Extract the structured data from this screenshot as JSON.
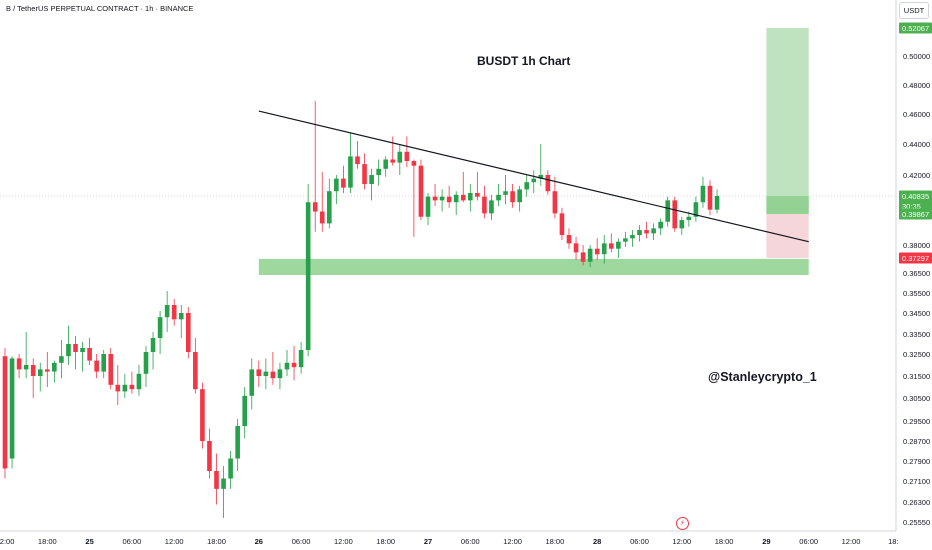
{
  "header": {
    "symbol_line": "B / TetherUS PERPETUAL CONTRACT · 1h · BINANCE",
    "currency": "USDT"
  },
  "annotations": {
    "title": "BUSDT 1h Chart",
    "watermark": "@Stanleycrypto_1",
    "flash_icon": "lightning-icon"
  },
  "price_axis": {
    "ticks": [
      "0.50000",
      "0.48000",
      "0.46000",
      "0.44000",
      "0.42000",
      "0.38000",
      "0.36500",
      "0.35500",
      "0.34500",
      "0.33500",
      "0.32500",
      "0.31500",
      "0.30500",
      "0.29500",
      "0.28700",
      "0.27900",
      "0.27100",
      "0.26300",
      "0.25550"
    ],
    "badges": [
      {
        "label": "0.52067",
        "color": "#4caf50"
      },
      {
        "label": "0.40835",
        "color": "#4caf50"
      },
      {
        "label": "30:35",
        "color": "#4caf50"
      },
      {
        "label": "0.39867",
        "color": "#4caf50"
      },
      {
        "label": "0.37297",
        "color": "#f23645"
      }
    ]
  },
  "time_axis": {
    "ticks": [
      "12:00",
      "18:00",
      "25",
      "06:00",
      "12:00",
      "18:00",
      "26",
      "06:00",
      "12:00",
      "18:00",
      "27",
      "06:00",
      "12:00",
      "18:00",
      "28",
      "06:00",
      "12:00",
      "18:00",
      "29",
      "06:00",
      "12:00",
      "18:"
    ]
  },
  "colors": {
    "up": "#26a04a",
    "down": "#f23645",
    "support_zone": "#9fd89f",
    "profit_zone": "#bfe3bf",
    "loss_zone": "#f5d6da",
    "trendline": "#131722"
  },
  "chart_data": {
    "type": "candlestick",
    "title": "BUSDT 1h Chart",
    "y_scale": "piecewise (per tick labels)",
    "ylim": [
      0.2525,
      0.525
    ],
    "x_range": [
      "2025-01-24 12:00",
      "2025-01-29 18:00"
    ],
    "last_price": 0.40835,
    "candles_hourly_from": "2025-01-24 12:00",
    "candles_ohlc": [
      [
        0.324,
        0.328,
        0.272,
        0.276
      ],
      [
        0.28,
        0.324,
        0.276,
        0.323
      ],
      [
        0.323,
        0.325,
        0.314,
        0.318
      ],
      [
        0.318,
        0.336,
        0.314,
        0.32
      ],
      [
        0.32,
        0.323,
        0.305,
        0.315
      ],
      [
        0.315,
        0.321,
        0.308,
        0.318
      ],
      [
        0.318,
        0.326,
        0.31,
        0.317
      ],
      [
        0.317,
        0.322,
        0.312,
        0.321
      ],
      [
        0.321,
        0.332,
        0.314,
        0.324
      ],
      [
        0.324,
        0.339,
        0.32,
        0.33
      ],
      [
        0.33,
        0.334,
        0.318,
        0.326
      ],
      [
        0.326,
        0.331,
        0.317,
        0.328
      ],
      [
        0.328,
        0.333,
        0.32,
        0.322
      ],
      [
        0.322,
        0.325,
        0.314,
        0.317
      ],
      [
        0.317,
        0.327,
        0.314,
        0.325
      ],
      [
        0.325,
        0.328,
        0.309,
        0.311
      ],
      [
        0.311,
        0.32,
        0.302,
        0.308
      ],
      [
        0.308,
        0.316,
        0.305,
        0.311
      ],
      [
        0.311,
        0.317,
        0.307,
        0.309
      ],
      [
        0.309,
        0.32,
        0.306,
        0.316
      ],
      [
        0.316,
        0.329,
        0.31,
        0.326
      ],
      [
        0.326,
        0.336,
        0.318,
        0.333
      ],
      [
        0.333,
        0.346,
        0.325,
        0.343
      ],
      [
        0.343,
        0.356,
        0.336,
        0.349
      ],
      [
        0.349,
        0.352,
        0.339,
        0.342
      ],
      [
        0.342,
        0.349,
        0.333,
        0.345
      ],
      [
        0.345,
        0.348,
        0.323,
        0.326
      ],
      [
        0.326,
        0.333,
        0.307,
        0.309
      ],
      [
        0.309,
        0.312,
        0.284,
        0.287
      ],
      [
        0.287,
        0.292,
        0.272,
        0.275
      ],
      [
        0.275,
        0.282,
        0.262,
        0.268
      ],
      [
        0.268,
        0.277,
        0.257,
        0.272
      ],
      [
        0.272,
        0.283,
        0.268,
        0.28
      ],
      [
        0.28,
        0.296,
        0.275,
        0.293
      ],
      [
        0.293,
        0.31,
        0.288,
        0.306
      ],
      [
        0.306,
        0.323,
        0.3,
        0.318
      ],
      [
        0.318,
        0.322,
        0.31,
        0.315
      ],
      [
        0.315,
        0.323,
        0.309,
        0.317
      ],
      [
        0.317,
        0.326,
        0.311,
        0.314
      ],
      [
        0.314,
        0.321,
        0.309,
        0.318
      ],
      [
        0.318,
        0.327,
        0.315,
        0.321
      ],
      [
        0.321,
        0.329,
        0.313,
        0.319
      ],
      [
        0.319,
        0.331,
        0.316,
        0.327
      ],
      [
        0.327,
        0.415,
        0.324,
        0.405
      ],
      [
        0.405,
        0.469,
        0.388,
        0.4
      ],
      [
        0.4,
        0.422,
        0.388,
        0.393
      ],
      [
        0.393,
        0.418,
        0.39,
        0.411
      ],
      [
        0.411,
        0.42,
        0.404,
        0.418
      ],
      [
        0.418,
        0.426,
        0.41,
        0.413
      ],
      [
        0.413,
        0.447,
        0.41,
        0.432
      ],
      [
        0.432,
        0.442,
        0.424,
        0.427
      ],
      [
        0.427,
        0.434,
        0.412,
        0.415
      ],
      [
        0.415,
        0.424,
        0.406,
        0.42
      ],
      [
        0.42,
        0.43,
        0.414,
        0.424
      ],
      [
        0.424,
        0.432,
        0.419,
        0.43
      ],
      [
        0.43,
        0.445,
        0.426,
        0.428
      ],
      [
        0.428,
        0.44,
        0.42,
        0.435
      ],
      [
        0.435,
        0.445,
        0.425,
        0.429
      ],
      [
        0.429,
        0.43,
        0.385,
        0.426
      ],
      [
        0.426,
        0.43,
        0.395,
        0.397
      ],
      [
        0.397,
        0.41,
        0.392,
        0.408
      ],
      [
        0.408,
        0.415,
        0.403,
        0.406
      ],
      [
        0.406,
        0.412,
        0.4,
        0.408
      ],
      [
        0.408,
        0.414,
        0.402,
        0.405
      ],
      [
        0.405,
        0.411,
        0.398,
        0.409
      ],
      [
        0.409,
        0.422,
        0.405,
        0.406
      ],
      [
        0.406,
        0.415,
        0.4,
        0.41
      ],
      [
        0.41,
        0.422,
        0.406,
        0.408
      ],
      [
        0.408,
        0.414,
        0.396,
        0.399
      ],
      [
        0.399,
        0.409,
        0.395,
        0.406
      ],
      [
        0.406,
        0.415,
        0.403,
        0.409
      ],
      [
        0.409,
        0.42,
        0.404,
        0.411
      ],
      [
        0.411,
        0.415,
        0.402,
        0.405
      ],
      [
        0.405,
        0.414,
        0.4,
        0.412
      ],
      [
        0.412,
        0.42,
        0.408,
        0.416
      ],
      [
        0.416,
        0.423,
        0.41,
        0.418
      ],
      [
        0.418,
        0.44,
        0.414,
        0.42
      ],
      [
        0.42,
        0.423,
        0.409,
        0.411
      ],
      [
        0.411,
        0.419,
        0.396,
        0.399
      ],
      [
        0.399,
        0.402,
        0.383,
        0.386
      ],
      [
        0.386,
        0.39,
        0.378,
        0.381
      ],
      [
        0.381,
        0.385,
        0.372,
        0.376
      ],
      [
        0.376,
        0.38,
        0.369,
        0.371
      ],
      [
        0.371,
        0.38,
        0.368,
        0.378
      ],
      [
        0.378,
        0.384,
        0.372,
        0.375
      ],
      [
        0.375,
        0.386,
        0.37,
        0.381
      ],
      [
        0.381,
        0.387,
        0.376,
        0.378
      ],
      [
        0.378,
        0.384,
        0.373,
        0.382
      ],
      [
        0.382,
        0.388,
        0.379,
        0.384
      ],
      [
        0.384,
        0.389,
        0.379,
        0.386
      ],
      [
        0.386,
        0.392,
        0.382,
        0.389
      ],
      [
        0.389,
        0.394,
        0.384,
        0.387
      ],
      [
        0.387,
        0.393,
        0.383,
        0.39
      ],
      [
        0.39,
        0.396,
        0.386,
        0.394
      ],
      [
        0.394,
        0.408,
        0.391,
        0.406
      ],
      [
        0.406,
        0.408,
        0.388,
        0.39
      ],
      [
        0.39,
        0.397,
        0.386,
        0.395
      ],
      [
        0.395,
        0.4,
        0.391,
        0.397
      ],
      [
        0.397,
        0.408,
        0.394,
        0.405
      ],
      [
        0.405,
        0.419,
        0.402,
        0.414
      ],
      [
        0.414,
        0.417,
        0.398,
        0.401
      ],
      [
        0.401,
        0.412,
        0.399,
        0.40835
      ]
    ],
    "trendline": {
      "from": [
        "2025-01-26 00:00",
        0.462
      ],
      "to": [
        "2025-01-29 06:00",
        0.382
      ]
    },
    "support_zone": {
      "from": "2025-01-26 00:00",
      "to": "2025-01-29 06:00",
      "low": 0.364,
      "high": 0.3725
    },
    "long_position": {
      "entry": 0.39867,
      "stop": 0.37297,
      "target": 0.52067,
      "from": "2025-01-29 00:00",
      "to": "2025-01-29 06:00"
    }
  }
}
